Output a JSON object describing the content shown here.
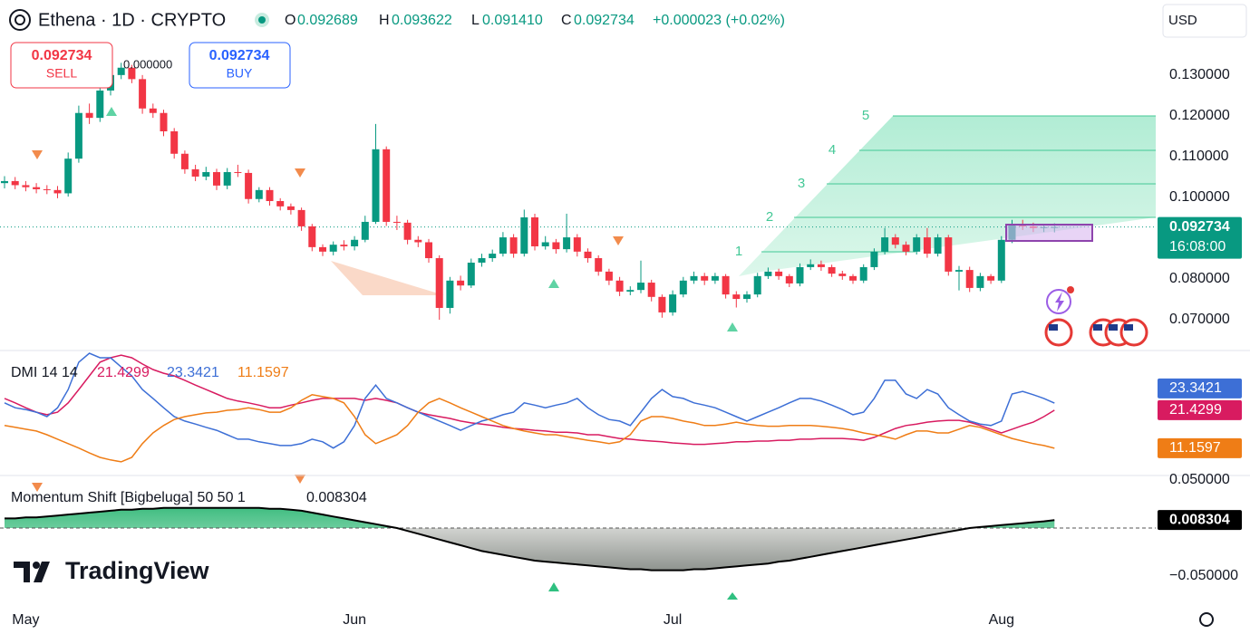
{
  "header": {
    "symbol": "Ethena · 1D · CRYPTO",
    "o": "O",
    "h": "H",
    "l": "L",
    "c": "C",
    "low_label": "0.091410",
    "change": "+0.000023 (+0.02%)",
    "sell": "SELL",
    "buy": "BUY",
    "spread": "0.000000",
    "currency": "USD",
    "countdown": "16:08:00",
    "logo": "TradingView"
  },
  "chart_data": [
    {
      "type": "candlestick",
      "up_color": "#089981",
      "down_color": "#f23645",
      "fib_labels": [
        "1",
        "2",
        "3",
        "4",
        "5"
      ],
      "categories": [
        null,
        null,
        "May",
        null,
        null,
        null,
        null,
        null,
        null,
        null,
        null,
        null,
        null,
        null,
        null,
        null,
        null,
        null,
        null,
        null,
        null,
        null,
        null,
        null,
        null,
        null,
        null,
        null,
        null,
        null,
        null,
        null,
        null,
        "Jun",
        null,
        null,
        null,
        null,
        null,
        null,
        null,
        null,
        null,
        null,
        null,
        null,
        null,
        null,
        null,
        null,
        null,
        null,
        null,
        null,
        null,
        null,
        null,
        null,
        null,
        null,
        null,
        null,
        null,
        "Jul",
        null,
        null,
        null,
        null,
        null,
        null,
        null,
        null,
        null,
        null,
        null,
        null,
        null,
        null,
        null,
        null,
        null,
        null,
        null,
        null,
        null,
        null,
        null,
        null,
        null,
        null,
        null,
        null,
        null,
        null,
        "Aug",
        null,
        null,
        null,
        null,
        null
      ],
      "open": [
        0.1035,
        0.104,
        0.103,
        0.1025,
        0.102,
        0.1018,
        0.101,
        0.1095,
        0.1207,
        0.1195,
        0.1262,
        0.13,
        0.1318,
        0.129,
        0.1218,
        0.1207,
        0.1162,
        0.1107,
        0.1069,
        0.1051,
        0.1062,
        0.1029,
        0.1062,
        0.106,
        0.0996,
        0.1018,
        0.0991,
        0.0978,
        0.0969,
        0.0929,
        0.0878,
        0.0867,
        0.0884,
        0.088,
        0.0896,
        0.094,
        0.1118,
        0.094,
        0.0938,
        0.0896,
        0.089,
        0.0851,
        0.0729,
        0.0796,
        0.0784,
        0.084,
        0.0851,
        0.0862,
        0.0902,
        0.0862,
        0.0951,
        0.088,
        0.089,
        0.0873,
        0.0902,
        0.0867,
        0.0851,
        0.0818,
        0.0796,
        0.0769,
        0.0773,
        0.0791,
        0.0756,
        0.0718,
        0.0762,
        0.0796,
        0.0807,
        0.0796,
        0.0807,
        0.0762,
        0.0751,
        0.0762,
        0.0807,
        0.0818,
        0.0807,
        0.0789,
        0.0829,
        0.0836,
        0.0829,
        0.0813,
        0.0807,
        0.0796,
        0.0829,
        0.0867,
        0.0902,
        0.0884,
        0.0867,
        0.0902,
        0.0862,
        0.0902,
        0.0818,
        0.0822,
        0.0778,
        0.0807,
        0.0796,
        0.0896,
        0.0933,
        0.0929,
        0.0925,
        0.092689
      ],
      "high": [
        0.1052,
        0.105,
        0.104,
        0.1035,
        0.103,
        0.1028,
        0.111,
        0.1225,
        0.123,
        0.128,
        0.134,
        0.133,
        0.1325,
        0.13,
        0.123,
        0.1215,
        0.117,
        0.1115,
        0.108,
        0.1075,
        0.107,
        0.1072,
        0.108,
        0.1068,
        0.1025,
        0.1025,
        0.0998,
        0.0985,
        0.0975,
        0.0935,
        0.0885,
        0.0892,
        0.0895,
        0.0905,
        0.0955,
        0.118,
        0.1125,
        0.0955,
        0.0945,
        0.0905,
        0.0898,
        0.0858,
        0.0805,
        0.0808,
        0.085,
        0.0862,
        0.0872,
        0.0915,
        0.091,
        0.097,
        0.096,
        0.0905,
        0.0898,
        0.096,
        0.091,
        0.0875,
        0.0858,
        0.0825,
        0.0805,
        0.0782,
        0.0845,
        0.0798,
        0.0762,
        0.0772,
        0.0805,
        0.0818,
        0.0815,
        0.0815,
        0.0812,
        0.077,
        0.077,
        0.0815,
        0.0828,
        0.0825,
        0.0812,
        0.0838,
        0.0848,
        0.0845,
        0.0835,
        0.082,
        0.0812,
        0.0836,
        0.0875,
        0.0925,
        0.091,
        0.0892,
        0.091,
        0.0925,
        0.091,
        0.0908,
        0.0832,
        0.083,
        0.0815,
        0.0812,
        0.0905,
        0.0945,
        0.0945,
        0.0938,
        0.0935,
        0.093622
      ],
      "low": [
        0.1022,
        0.102,
        0.1015,
        0.101,
        0.1008,
        0.0998,
        0.1002,
        0.1085,
        0.118,
        0.1185,
        0.125,
        0.129,
        0.128,
        0.1205,
        0.1195,
        0.115,
        0.1095,
        0.1058,
        0.104,
        0.1042,
        0.1018,
        0.102,
        0.105,
        0.0985,
        0.0988,
        0.098,
        0.0968,
        0.0958,
        0.0918,
        0.0868,
        0.0856,
        0.0858,
        0.087,
        0.087,
        0.089,
        0.0935,
        0.093,
        0.092,
        0.0885,
        0.0878,
        0.084,
        0.07,
        0.0715,
        0.0772,
        0.0778,
        0.083,
        0.0842,
        0.0855,
        0.0852,
        0.0855,
        0.087,
        0.0872,
        0.0862,
        0.0865,
        0.0855,
        0.084,
        0.0808,
        0.0785,
        0.0758,
        0.076,
        0.0765,
        0.0745,
        0.0705,
        0.071,
        0.0755,
        0.0788,
        0.0785,
        0.0788,
        0.0752,
        0.073,
        0.0742,
        0.0755,
        0.08,
        0.0798,
        0.078,
        0.0782,
        0.0822,
        0.082,
        0.0805,
        0.0798,
        0.0788,
        0.079,
        0.0822,
        0.086,
        0.0875,
        0.0858,
        0.086,
        0.0852,
        0.0855,
        0.0808,
        0.0772,
        0.0768,
        0.077,
        0.0788,
        0.079,
        0.0888,
        0.092,
        0.0915,
        0.0915,
        0.09141
      ],
      "close": [
        0.104,
        0.103,
        0.1025,
        0.102,
        0.1018,
        0.101,
        0.1095,
        0.1207,
        0.1195,
        0.1262,
        0.13,
        0.1318,
        0.129,
        0.1218,
        0.1207,
        0.1162,
        0.1107,
        0.1069,
        0.1051,
        0.1062,
        0.1029,
        0.1062,
        0.106,
        0.0996,
        0.1018,
        0.0991,
        0.0978,
        0.0969,
        0.0929,
        0.0878,
        0.0867,
        0.0884,
        0.088,
        0.0896,
        0.094,
        0.1118,
        0.094,
        0.0938,
        0.0896,
        0.089,
        0.0851,
        0.0729,
        0.0796,
        0.0784,
        0.084,
        0.0851,
        0.0862,
        0.0902,
        0.0862,
        0.0951,
        0.088,
        0.089,
        0.0873,
        0.0902,
        0.0867,
        0.0851,
        0.0818,
        0.0796,
        0.0769,
        0.0773,
        0.0791,
        0.0756,
        0.0718,
        0.0762,
        0.0796,
        0.0807,
        0.0796,
        0.0807,
        0.0762,
        0.0751,
        0.0762,
        0.0807,
        0.0818,
        0.0807,
        0.0789,
        0.0829,
        0.0836,
        0.0829,
        0.0813,
        0.0807,
        0.0796,
        0.0829,
        0.0867,
        0.0902,
        0.0884,
        0.0867,
        0.0902,
        0.0862,
        0.0902,
        0.0818,
        0.0822,
        0.0778,
        0.0807,
        0.0796,
        0.0896,
        0.0933,
        0.0929,
        0.0925,
        0.0927,
        0.092734
      ],
      "ylim": [
        0.0629,
        0.1484
      ],
      "yticks": [
        {
          "value": 0.13,
          "label": "0.130000"
        },
        {
          "value": 0.12,
          "label": "0.120000"
        },
        {
          "value": 0.11,
          "label": "0.110000"
        },
        {
          "value": 0.1,
          "label": "0.100000"
        },
        {
          "value": 0.08,
          "label": "0.080000"
        },
        {
          "value": 0.07,
          "label": "0.070000"
        }
      ],
      "grid": false
    },
    {
      "type": "line",
      "title": "DMI 14 14",
      "ylim": [
        3.8,
        37.3
      ],
      "series": [
        {
          "color": "#d81b60",
          "values": [
            24.6,
            23.4,
            22.1,
            20.9,
            20.2,
            20.9,
            23.4,
            27.0,
            30.7,
            34.4,
            35.6,
            36.3,
            35.6,
            33.9,
            32.4,
            31.4,
            30.7,
            29.5,
            28.2,
            27.0,
            25.8,
            24.6,
            23.9,
            23.4,
            22.8,
            22.1,
            22.1,
            22.8,
            23.4,
            24.1,
            24.6,
            24.6,
            24.6,
            24.6,
            24.1,
            24.6,
            24.1,
            23.4,
            22.1,
            20.9,
            20.2,
            19.7,
            19.2,
            18.5,
            18.0,
            17.7,
            17.3,
            16.8,
            16.5,
            16.3,
            16.0,
            15.8,
            15.5,
            15.5,
            15.3,
            14.8,
            14.8,
            14.3,
            13.8,
            13.6,
            13.3,
            13.1,
            12.9,
            12.6,
            12.4,
            12.2,
            12.2,
            12.4,
            12.6,
            12.9,
            12.9,
            13.1,
            13.1,
            13.3,
            13.3,
            13.6,
            13.6,
            13.8,
            13.8,
            13.8,
            13.6,
            13.3,
            14.1,
            15.3,
            16.5,
            17.3,
            17.7,
            18.2,
            18.5,
            18.7,
            18.7,
            18.2,
            17.3,
            16.3,
            15.3,
            16.3,
            17.3,
            18.2,
            19.7,
            21.4299
          ]
        },
        {
          "color": "#3d6fd6",
          "values": [
            23.4,
            22.1,
            21.6,
            20.9,
            19.7,
            22.1,
            27.0,
            34.4,
            36.8,
            35.6,
            35.6,
            33.1,
            30.7,
            27.0,
            24.6,
            22.1,
            19.7,
            18.5,
            17.7,
            16.8,
            16.0,
            14.8,
            13.6,
            13.6,
            12.9,
            12.4,
            11.9,
            11.9,
            12.4,
            13.6,
            12.9,
            11.2,
            12.9,
            17.3,
            24.6,
            28.2,
            24.6,
            23.4,
            22.1,
            20.9,
            19.7,
            18.5,
            17.3,
            16.0,
            17.3,
            18.5,
            19.2,
            20.2,
            20.9,
            23.4,
            22.8,
            22.1,
            22.8,
            23.4,
            24.6,
            22.1,
            20.2,
            18.9,
            18.5,
            17.3,
            20.9,
            24.6,
            27.0,
            25.1,
            24.6,
            23.4,
            22.8,
            22.1,
            20.9,
            19.7,
            18.5,
            19.7,
            20.9,
            22.1,
            23.4,
            24.6,
            24.6,
            23.9,
            22.8,
            21.6,
            20.2,
            20.9,
            24.6,
            29.5,
            29.5,
            25.8,
            24.6,
            27.0,
            25.8,
            22.1,
            20.2,
            18.5,
            17.7,
            17.3,
            18.5,
            25.8,
            26.5,
            25.6,
            24.6,
            23.3421
          ]
        },
        {
          "color": "#ef7d16",
          "values": [
            17.3,
            16.8,
            16.3,
            15.8,
            14.8,
            13.6,
            12.4,
            11.2,
            9.9,
            8.7,
            8.0,
            7.5,
            8.7,
            12.4,
            15.3,
            17.3,
            18.9,
            19.7,
            20.2,
            20.7,
            20.9,
            21.4,
            21.6,
            22.1,
            21.6,
            20.9,
            20.9,
            22.1,
            24.1,
            25.6,
            25.1,
            24.6,
            23.4,
            19.7,
            14.8,
            12.4,
            13.6,
            14.8,
            17.3,
            20.9,
            23.4,
            24.6,
            23.4,
            22.1,
            20.9,
            19.7,
            18.5,
            17.3,
            16.5,
            15.8,
            15.3,
            14.8,
            14.8,
            14.3,
            13.8,
            13.3,
            12.9,
            12.4,
            12.9,
            14.8,
            18.5,
            19.7,
            19.7,
            19.2,
            18.5,
            18.0,
            17.3,
            17.3,
            17.7,
            18.2,
            17.7,
            17.3,
            17.1,
            17.1,
            17.3,
            17.3,
            17.3,
            17.1,
            16.8,
            16.5,
            16.0,
            15.3,
            14.8,
            14.3,
            13.6,
            14.8,
            15.8,
            15.8,
            15.3,
            15.3,
            16.3,
            17.3,
            16.8,
            15.8,
            14.8,
            13.8,
            13.1,
            12.4,
            11.9,
            11.1597
          ]
        }
      ]
    },
    {
      "type": "area",
      "title": "Momentum Shift [Bigbeluga] 50 50 1",
      "color": "#000000",
      "ylim": [
        -0.0774,
        0.0547
      ],
      "yticks": [
        {
          "value": 0.05,
          "label": "0.050000"
        },
        {
          "value": -0.05,
          "label": "−0.050000"
        }
      ],
      "values": [
        0.01,
        0.01,
        0.011,
        0.011,
        0.012,
        0.013,
        0.014,
        0.015,
        0.016,
        0.017,
        0.018,
        0.019,
        0.019,
        0.02,
        0.02,
        0.021,
        0.021,
        0.021,
        0.021,
        0.021,
        0.021,
        0.021,
        0.021,
        0.021,
        0.021,
        0.02,
        0.02,
        0.019,
        0.018,
        0.016,
        0.014,
        0.012,
        0.01,
        0.008,
        0.006,
        0.004,
        0.002,
        0.0,
        -0.003,
        -0.006,
        -0.009,
        -0.012,
        -0.015,
        -0.018,
        -0.021,
        -0.024,
        -0.026,
        -0.028,
        -0.03,
        -0.032,
        -0.034,
        -0.035,
        -0.036,
        -0.037,
        -0.038,
        -0.039,
        -0.04,
        -0.041,
        -0.042,
        -0.043,
        -0.043,
        -0.044,
        -0.044,
        -0.044,
        -0.044,
        -0.043,
        -0.043,
        -0.042,
        -0.041,
        -0.04,
        -0.039,
        -0.038,
        -0.037,
        -0.035,
        -0.034,
        -0.032,
        -0.03,
        -0.028,
        -0.026,
        -0.024,
        -0.022,
        -0.02,
        -0.018,
        -0.016,
        -0.014,
        -0.012,
        -0.01,
        -0.008,
        -0.006,
        -0.004,
        -0.002,
        0.0,
        0.001,
        0.002,
        0.003,
        0.004,
        0.005,
        0.006,
        0.007,
        0.008304
      ]
    }
  ]
}
